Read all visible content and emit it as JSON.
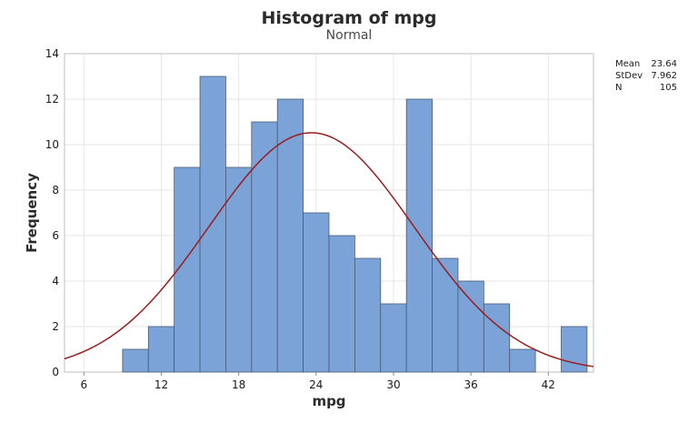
{
  "chart_data": {
    "type": "bar",
    "title": "Histogram of mpg",
    "subtitle": "Normal",
    "xlabel": "mpg",
    "ylabel": "Frequency",
    "bin_width": 2,
    "bins": [
      {
        "center": 10,
        "count": 1
      },
      {
        "center": 12,
        "count": 2
      },
      {
        "center": 14,
        "count": 9
      },
      {
        "center": 16,
        "count": 13
      },
      {
        "center": 18,
        "count": 9
      },
      {
        "center": 20,
        "count": 11
      },
      {
        "center": 22,
        "count": 12
      },
      {
        "center": 24,
        "count": 7
      },
      {
        "center": 26,
        "count": 6
      },
      {
        "center": 28,
        "count": 5
      },
      {
        "center": 30,
        "count": 3
      },
      {
        "center": 32,
        "count": 12
      },
      {
        "center": 34,
        "count": 5
      },
      {
        "center": 36,
        "count": 4
      },
      {
        "center": 38,
        "count": 3
      },
      {
        "center": 40,
        "count": 1
      },
      {
        "center": 42,
        "count": 0
      },
      {
        "center": 44,
        "count": 2
      }
    ],
    "xlim": [
      4.5,
      45.5
    ],
    "ylim": [
      0,
      14
    ],
    "x_ticks": [
      6,
      12,
      18,
      24,
      30,
      36,
      42
    ],
    "y_ticks": [
      0,
      2,
      4,
      6,
      8,
      10,
      12,
      14
    ],
    "grid": true,
    "fit": {
      "type": "normal",
      "mean": 23.64,
      "stdev": 7.962,
      "n": 105
    },
    "colors": {
      "bar": "#7ba3d8",
      "bar_edge": "#4a5a73",
      "curve": "#9b1c1c",
      "grid": "#e6e6e6"
    }
  },
  "stats_box": [
    {
      "label": "Mean",
      "value": "23.64"
    },
    {
      "label": "StDev",
      "value": "7.962"
    },
    {
      "label": "N",
      "value": "105"
    }
  ]
}
